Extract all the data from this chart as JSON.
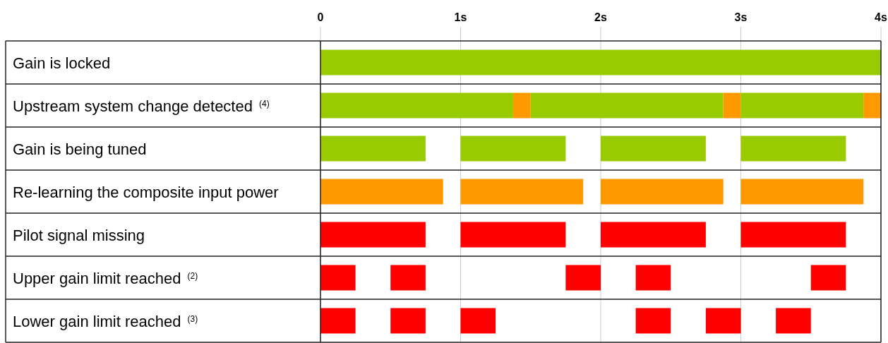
{
  "chart_data": {
    "type": "bar",
    "orientation": "horizontal",
    "categories": [
      "Gain is locked",
      "Upstream system change detected $^{(4)}$",
      "Gain is being tuned",
      "Re-learning the composite input power",
      "Pilot signal missing",
      "Upper gain limit reached $^{(2)}$",
      "Lower gain limit reached $^{(3)}$"
    ],
    "xlim": [
      0,
      4
    ],
    "xticks": [
      0,
      {
        "value": 1,
        "label": "1s"
      },
      {
        "value": 2,
        "label": "2s"
      },
      {
        "value": 3,
        "label": "3s"
      },
      {
        "value": 4,
        "label": "4s"
      }
    ],
    "grid": "x",
    "series": [
      {
        "base": [
          0,
          0,
          0,
          0,
          0,
          0,
          0
        ],
        "values": [
          4,
          1.375,
          0.75,
          0.875,
          0.75,
          0.25,
          0.25
        ],
        "colors": [
          "#99cc00",
          "#99cc00",
          "#99cc00",
          "#ff9900",
          "#ff0000",
          "#ff0000",
          "#ff0000"
        ]
      },
      {
        "base": [
          null,
          1.375,
          1,
          1,
          1,
          0.5,
          0.5
        ],
        "values": [
          null,
          0.125,
          0.75,
          0.875,
          0.75,
          0.25,
          0.25
        ],
        "colors": [
          null,
          "#ff9900",
          "#99cc00",
          "#ff9900",
          "#ff0000",
          "#ff0000",
          "#ff0000"
        ]
      },
      {
        "base": [
          null,
          1.5,
          2,
          2,
          2,
          1.75,
          1
        ],
        "values": [
          null,
          1.375,
          0.75,
          0.875,
          0.75,
          0.25,
          0.25
        ],
        "colors": [
          null,
          "#99cc00",
          "#99cc00",
          "#ff9900",
          "#ff0000",
          "#ff0000",
          "#ff0000"
        ]
      },
      {
        "base": [
          null,
          2.875,
          3,
          3,
          3,
          2.25,
          2.25
        ],
        "values": [
          null,
          0.125,
          0.75,
          0.875,
          0.75,
          0.25,
          0.25
        ],
        "colors": [
          null,
          "#ff9900",
          "#99cc00",
          "#ff9900",
          "#ff0000",
          "#ff0000",
          "#ff0000"
        ]
      },
      {
        "base": [
          null,
          3,
          null,
          null,
          null,
          3.5,
          2.75
        ],
        "values": [
          null,
          0.875,
          null,
          null,
          null,
          0.25,
          0.25
        ],
        "colors": [
          null,
          "#99cc00",
          null,
          null,
          null,
          "#ff0000",
          "#ff0000"
        ]
      },
      {
        "base": [
          null,
          3.875,
          null,
          null,
          null,
          null,
          3.25
        ],
        "values": [
          null,
          0.125,
          null,
          null,
          null,
          null,
          0.25
        ],
        "colors": [
          null,
          "#ff9900",
          null,
          null,
          null,
          null,
          "#ff0000"
        ]
      }
    ]
  }
}
